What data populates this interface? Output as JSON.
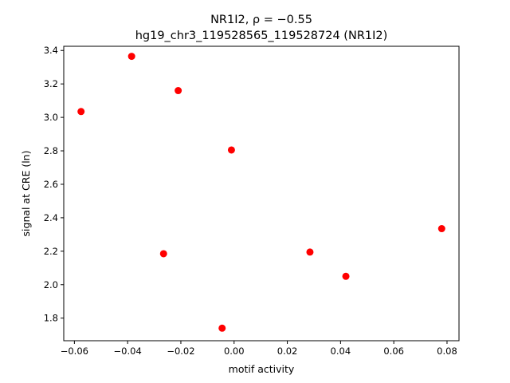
{
  "chart_data": {
    "type": "scatter",
    "title_line1": "NR1I2, ρ = −0.55",
    "title_line2": "hg19_chr3_119528565_119528724 (NR1I2)",
    "xlabel": "motif activity",
    "ylabel": "signal at CRE (ln)",
    "xlim": [
      -0.064,
      0.0845
    ],
    "ylim": [
      1.665,
      3.425
    ],
    "x_ticks": [
      -0.06,
      -0.04,
      -0.02,
      0.0,
      0.02,
      0.04,
      0.06,
      0.08
    ],
    "x_tick_labels": [
      "−0.06",
      "−0.04",
      "−0.02",
      "0.00",
      "0.02",
      "0.04",
      "0.06",
      "0.08"
    ],
    "y_ticks": [
      1.8,
      2.0,
      2.2,
      2.4,
      2.6,
      2.8,
      3.0,
      3.2,
      3.4
    ],
    "y_tick_labels": [
      "1.8",
      "2.0",
      "2.2",
      "2.4",
      "2.6",
      "2.8",
      "3.0",
      "3.2",
      "3.4"
    ],
    "grid": false,
    "marker_color": "#ff0000",
    "points": [
      {
        "x": -0.0575,
        "y": 3.035
      },
      {
        "x": -0.0385,
        "y": 3.365
      },
      {
        "x": -0.021,
        "y": 3.16
      },
      {
        "x": -0.0265,
        "y": 2.185
      },
      {
        "x": -0.0045,
        "y": 1.74
      },
      {
        "x": -0.001,
        "y": 2.805
      },
      {
        "x": 0.0285,
        "y": 2.195
      },
      {
        "x": 0.042,
        "y": 2.05
      },
      {
        "x": 0.078,
        "y": 2.335
      }
    ]
  }
}
